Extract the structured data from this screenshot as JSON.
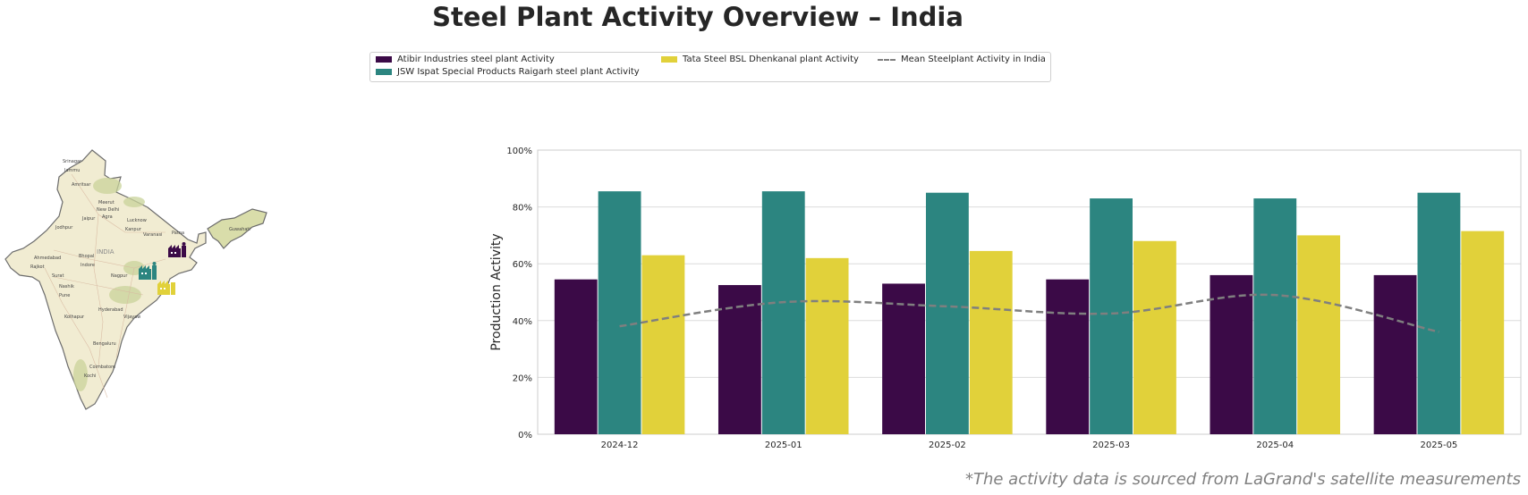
{
  "title": "Steel Plant Activity Overview – India",
  "footnote": "*The activity data is sourced from LaGrand's satellite measurements",
  "legend": [
    {
      "label": "Atibir Industries steel plant Activity",
      "color": "#3b0a47",
      "kind": "bar"
    },
    {
      "label": "JSW Ispat Special Products Raigarh steel plant Activity",
      "color": "#2c8580",
      "kind": "bar"
    },
    {
      "label": "Tata Steel BSL Dhenkanal plant Activity",
      "color": "#e1d13a",
      "kind": "bar"
    },
    {
      "label": "Mean Steelplant Activity in India",
      "color": "#7f7f7f",
      "kind": "dashed-line"
    }
  ],
  "map": {
    "country_label": "INDIA",
    "cities": [
      "Srinagar",
      "Jammu",
      "Amritsar",
      "Meerut",
      "New Delhi",
      "Jaipur",
      "Agra",
      "Lucknow",
      "Kanpur",
      "Jodhpur",
      "Varanasi",
      "Patna",
      "Guwahati",
      "Ahmedabad",
      "Bhopal",
      "Indore",
      "Rajkot",
      "Surat",
      "Nagpur",
      "Nashik",
      "Pune",
      "Hyderabad",
      "Kolhapur",
      "Vijayaw",
      "Bengaluru",
      "Coimbatore",
      "Kochi"
    ],
    "markers": [
      {
        "name": "factory-marker-atibir",
        "color": "#3b0a47"
      },
      {
        "name": "factory-marker-jsw",
        "color": "#2c8580"
      },
      {
        "name": "factory-marker-tata",
        "color": "#e1d13a"
      }
    ]
  },
  "chart_data": {
    "type": "bar",
    "categories": [
      "2024-12",
      "2025-01",
      "2025-02",
      "2025-03",
      "2025-04",
      "2025-05"
    ],
    "series": [
      {
        "name": "Atibir Industries steel plant Activity",
        "color": "#3b0a47",
        "values": [
          54.5,
          52.5,
          53,
          54.5,
          56,
          56
        ]
      },
      {
        "name": "JSW Ispat Special Products Raigarh steel plant Activity",
        "color": "#2c8580",
        "values": [
          85.5,
          85.5,
          85,
          83,
          83,
          85
        ]
      },
      {
        "name": "Tata Steel BSL Dhenkanal plant Activity",
        "color": "#e1d13a",
        "values": [
          63,
          62,
          64.5,
          68,
          70,
          71.5
        ]
      }
    ],
    "mean_line": {
      "name": "Mean Steelplant Activity in India",
      "color": "#7f7f7f",
      "style": "dashed",
      "values": [
        38,
        46.5,
        45,
        42.5,
        49,
        36
      ]
    },
    "ylabel": "Production Activity",
    "xlabel": "",
    "ylim": [
      0,
      100
    ],
    "yticks": [
      "0%",
      "20%",
      "40%",
      "60%",
      "80%",
      "100%"
    ],
    "grid": true
  }
}
